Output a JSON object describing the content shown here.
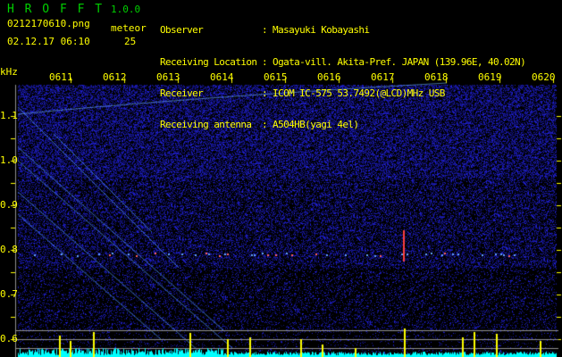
{
  "header": {
    "app_name": "H R O F F T",
    "version": "1.0.0",
    "filename": "0212170610.png",
    "datetime": "02.12.17 06:10",
    "meteor_label": "meteor",
    "meteor_count": "25"
  },
  "station_info": [
    {
      "label": "Observer",
      "value": ": Masayuki Kobayashi"
    },
    {
      "label": "Receiving Location",
      "value": ": Ogata-vill. Akita-Pref. JAPAN (139.96E, 40.02N)"
    },
    {
      "label": "Receiver",
      "value": ": ICOM IC-575 53.7492(@LCD)MHz USB"
    },
    {
      "label": "Receiving antenna",
      "value": ": A504HB(yagi 4el)"
    }
  ],
  "spectrogram": {
    "y_unit": "kHz",
    "y_ticks": [
      "1.1",
      "1.0",
      "0.9",
      "0.8",
      "0.7",
      "0.6"
    ],
    "time_labels": [
      "0611",
      "0612",
      "0613",
      "0614",
      "0615",
      "0616",
      "0617",
      "0618",
      "0619",
      "0620"
    ],
    "colors": {
      "background": "#000000",
      "noise": "#2020c0",
      "text": "#ffff00",
      "title": "#00d000",
      "count_bars": "#00ffff",
      "peak_bars": "#ffff00"
    }
  }
}
